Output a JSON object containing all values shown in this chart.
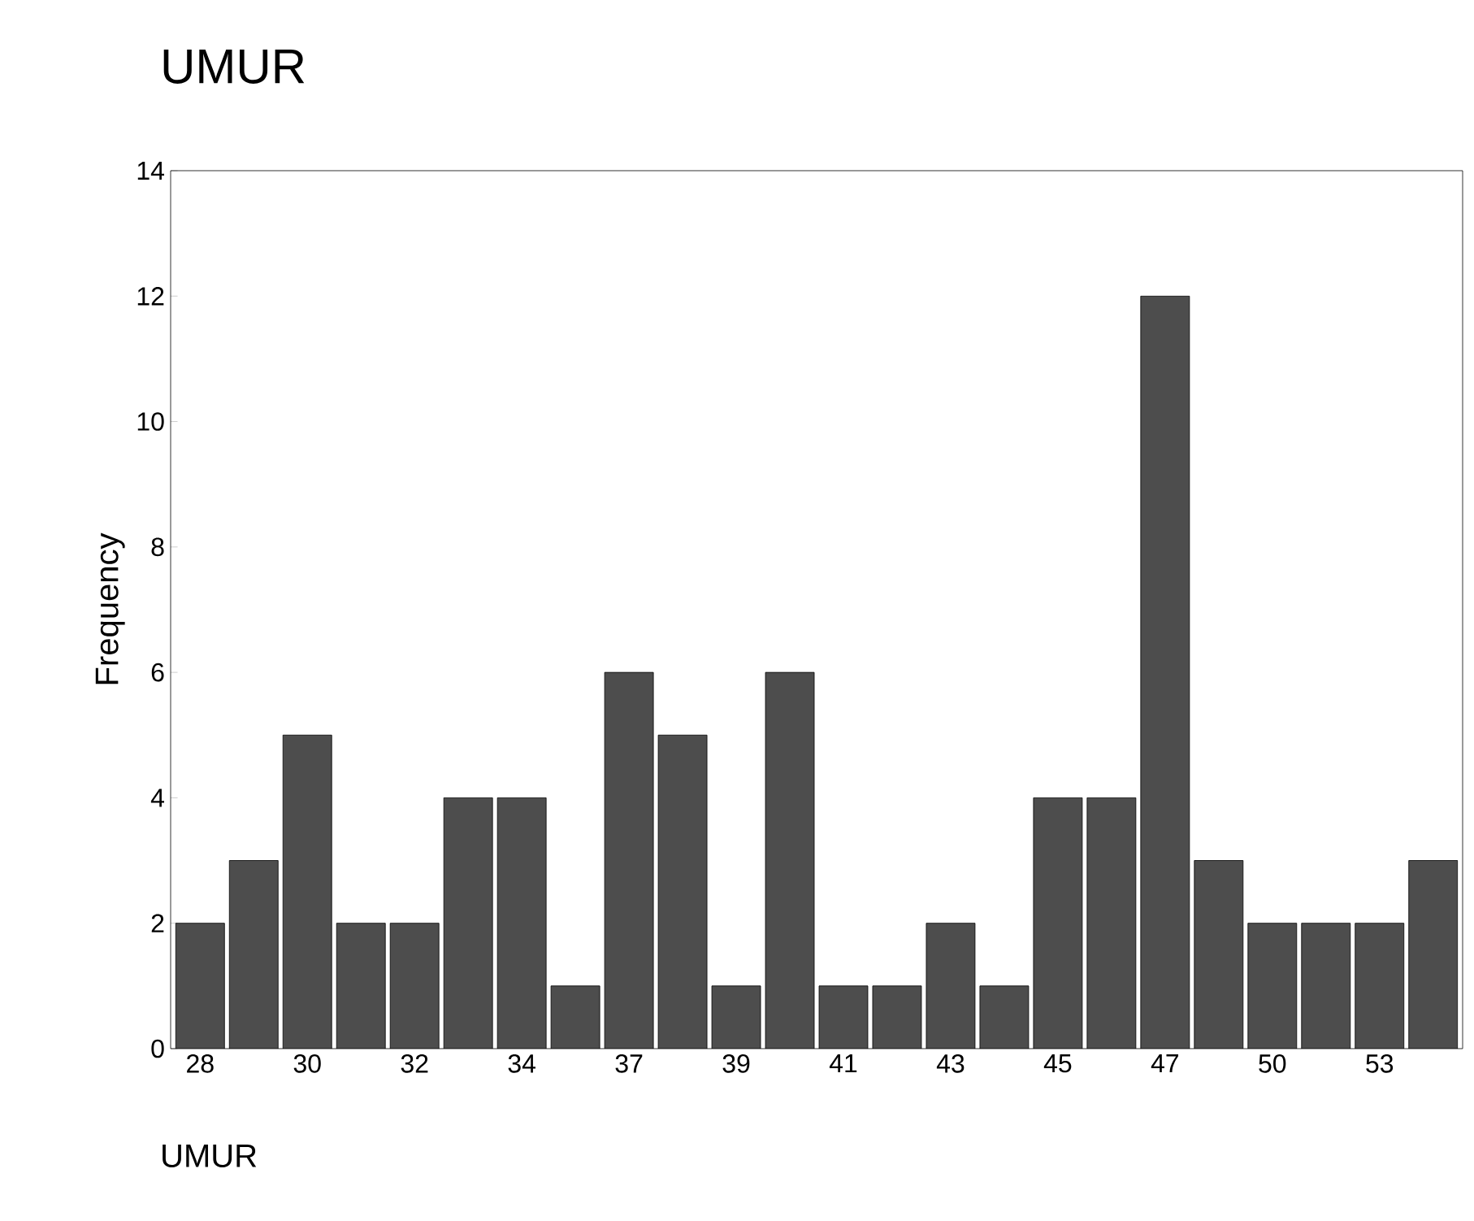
{
  "chart_data": {
    "type": "bar",
    "title": "UMUR",
    "annotations": [
      "UMUR"
    ],
    "ylabel": "Frequency",
    "categories": [
      "28",
      null,
      "30",
      null,
      "32",
      null,
      "34",
      null,
      "37",
      null,
      "39",
      null,
      "41",
      null,
      "43",
      null,
      "45",
      null,
      "47",
      null,
      "50",
      null,
      "53",
      null
    ],
    "values": [
      2,
      3,
      5,
      2,
      2,
      4,
      4,
      1,
      6,
      5,
      1,
      6,
      1,
      1,
      2,
      1,
      4,
      4,
      12,
      3,
      2,
      2,
      2,
      3
    ],
    "color": "#4d4d4d",
    "ylim": [
      0,
      14
    ],
    "yticks": [
      0,
      2,
      4,
      6,
      8,
      10,
      12,
      14
    ],
    "grid": false
  }
}
